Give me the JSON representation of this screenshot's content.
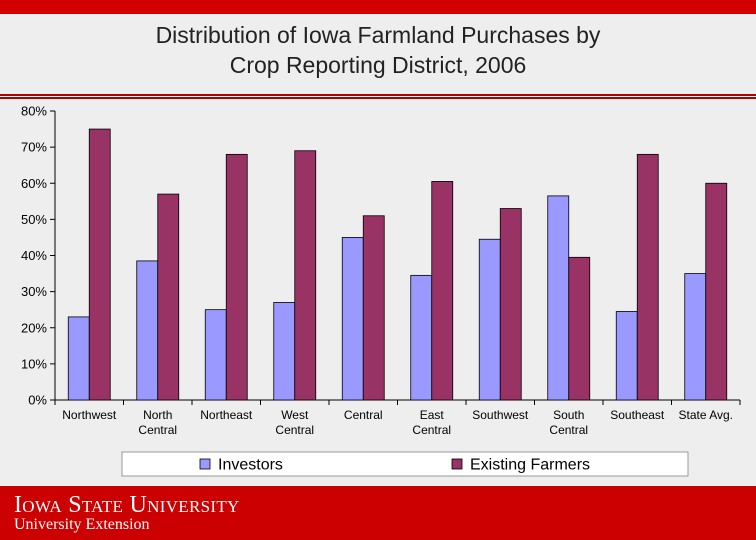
{
  "header": {
    "title_line1": "Distribution of Iowa Farmland Purchases by",
    "title_line2": "Crop Reporting District, 2006"
  },
  "footer": {
    "university": "Iowa State University",
    "extension": "University Extension",
    "bar_color": "#cc0000"
  },
  "chart_data": {
    "type": "bar",
    "title": "Distribution of Iowa Farmland Purchases by Crop Reporting District, 2006",
    "categories": [
      [
        "Northwest"
      ],
      [
        "North",
        "Central"
      ],
      [
        "Northeast"
      ],
      [
        "West",
        "Central"
      ],
      [
        "Central"
      ],
      [
        "East",
        "Central"
      ],
      [
        "Southwest"
      ],
      [
        "South",
        "Central"
      ],
      [
        "Southeast"
      ],
      [
        "State Avg."
      ]
    ],
    "series": [
      {
        "name": "Investors",
        "color": "#9999ff",
        "values": [
          23,
          38.5,
          25,
          27,
          45,
          34.5,
          44.5,
          56.5,
          24.5,
          35
        ]
      },
      {
        "name": "Existing Farmers",
        "color": "#993366",
        "values": [
          75,
          57,
          68,
          69,
          51,
          60.5,
          53,
          39.5,
          68,
          60
        ]
      }
    ],
    "ylim": [
      0,
      80
    ],
    "yticks": [
      0,
      10,
      20,
      30,
      40,
      50,
      60,
      70,
      80
    ],
    "ytick_labels": [
      "0%",
      "10%",
      "20%",
      "30%",
      "40%",
      "50%",
      "60%",
      "70%",
      "80%"
    ],
    "grid": false,
    "legend": "bottom"
  }
}
